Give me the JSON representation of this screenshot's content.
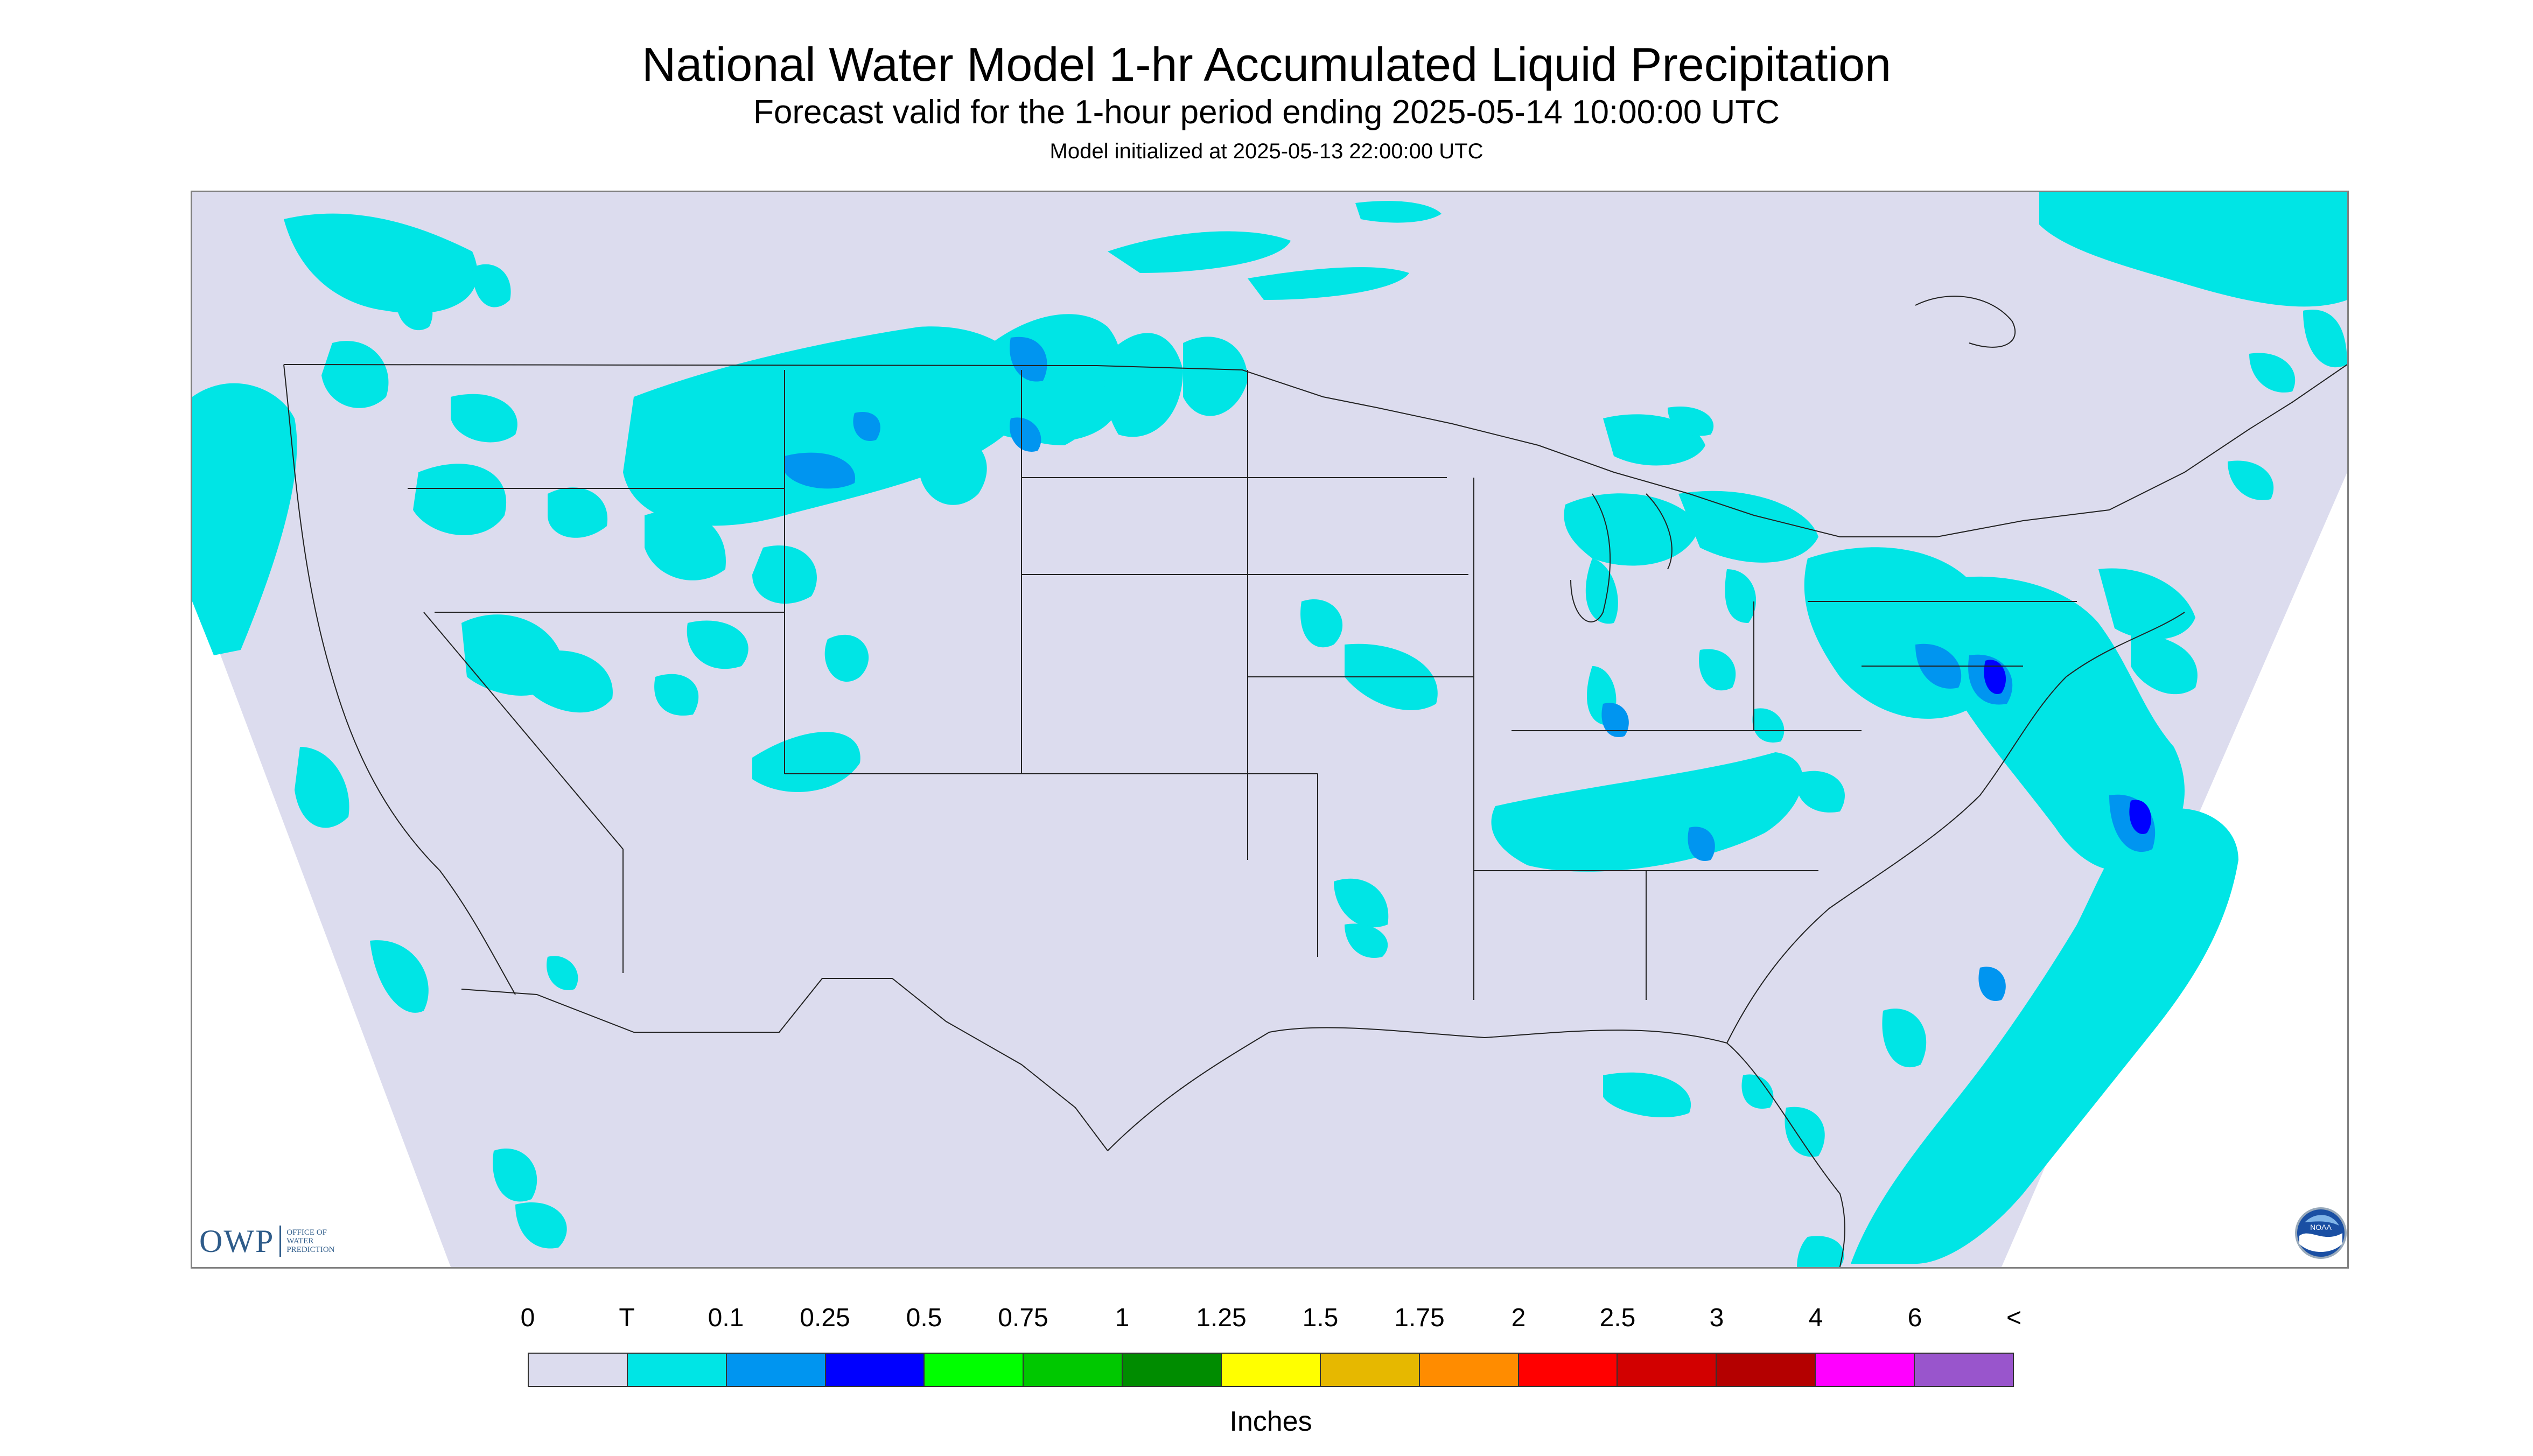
{
  "title": "National Water Model 1-hr Accumulated Liquid Precipitation",
  "subtitle": "Forecast valid for the 1-hour period ending 2025-05-14 10:00:00 UTC",
  "init_line": "Model initialized at 2025-05-13 22:00:00 UTC",
  "logos": {
    "owp_mark": "OWP",
    "owp_text": "OFFICE OF WATER PREDICTION",
    "noaa_text": "NOAA"
  },
  "legend": {
    "units": "Inches",
    "tick_labels": [
      "0",
      "T",
      "0.1",
      "0.25",
      "0.5",
      "0.75",
      "1",
      "1.25",
      "1.5",
      "1.75",
      "2",
      "2.5",
      "3",
      "4",
      "6",
      "<"
    ],
    "colors": [
      "#dcdcee",
      "#00e5e5",
      "#0095f0",
      "#0000ff",
      "#00ff00",
      "#00c800",
      "#008c00",
      "#ffff00",
      "#e6b800",
      "#ff8c00",
      "#ff0000",
      "#d20000",
      "#b40000",
      "#ff00ff",
      "#9955cc"
    ]
  },
  "colors": {
    "map_background": "#dcdcee",
    "light_precip": "#00e5e5",
    "medium_precip": "#0095f0",
    "heavy_precip": "#0000ff",
    "outside_domain": "#ffffff",
    "borders": "#222222"
  }
}
